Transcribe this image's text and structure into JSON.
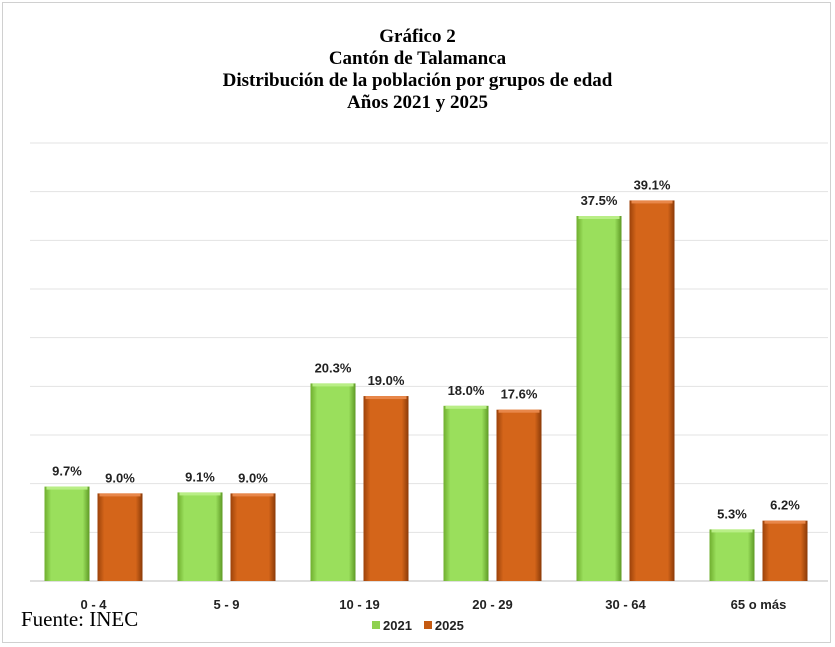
{
  "chart_data": {
    "type": "bar",
    "title_lines": [
      "Gráfico 2",
      "Cantón de Talamanca",
      "Distribución de la población por grupos de edad",
      "Años 2021 y 2025"
    ],
    "categories": [
      "0 - 4",
      "5 - 9",
      "10 - 19",
      "20 - 29",
      "30 - 64",
      "65 o más"
    ],
    "series": [
      {
        "name": "2021",
        "values": [
          9.7,
          9.1,
          20.3,
          18.0,
          37.5,
          5.3
        ],
        "labels": [
          "9.7%",
          "9.1%",
          "20.3%",
          "18.0%",
          "37.5%",
          "5.3%"
        ],
        "color": "#8fd14f"
      },
      {
        "name": "2025",
        "values": [
          9.0,
          9.0,
          19.0,
          17.6,
          39.1,
          6.2
        ],
        "labels": [
          "9.0%",
          "9.0%",
          "19.0%",
          "17.6%",
          "39.1%",
          "6.2%"
        ],
        "color": "#c55a11"
      }
    ],
    "ylim": [
      0,
      45
    ],
    "gridlines": true,
    "legend_position": "bottom",
    "xlabel": "",
    "ylabel": ""
  },
  "source": "Fuente: INEC"
}
